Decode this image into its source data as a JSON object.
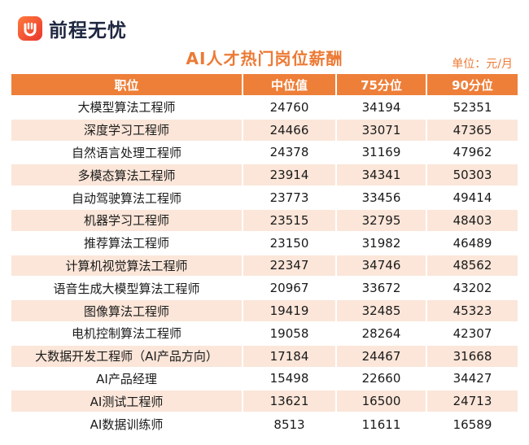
{
  "brand": {
    "name": "前程无忧",
    "logo_icon": "qcwy-logo-icon",
    "accent": "#ee7f39"
  },
  "title": "AI人才热门岗位薪酬",
  "unit": "单位：元/月",
  "chart_data": {
    "type": "table",
    "title": "AI人才热门岗位薪酬",
    "unit": "单位：元/月",
    "columns": [
      "职位",
      "中位值",
      "75分位",
      "90分位"
    ],
    "rows": [
      [
        "大模型算法工程师",
        "24760",
        "34194",
        "52351"
      ],
      [
        "深度学习工程师",
        "24466",
        "33071",
        "47365"
      ],
      [
        "自然语言处理工程师",
        "24378",
        "31169",
        "47962"
      ],
      [
        "多模态算法工程师",
        "23914",
        "34341",
        "50303"
      ],
      [
        "自动驾驶算法工程师",
        "23773",
        "33456",
        "49414"
      ],
      [
        "机器学习工程师",
        "23515",
        "32795",
        "48403"
      ],
      [
        "推荐算法工程师",
        "23150",
        "31982",
        "46489"
      ],
      [
        "计算机视觉算法工程师",
        "22347",
        "34746",
        "48562"
      ],
      [
        "语音生成大模型算法工程师",
        "20967",
        "33672",
        "43202"
      ],
      [
        "图像算法工程师",
        "19419",
        "32485",
        "45323"
      ],
      [
        "电机控制算法工程师",
        "19058",
        "28264",
        "42307"
      ],
      [
        "大数据开发工程师（AI产品方向）",
        "17184",
        "24467",
        "31668"
      ],
      [
        "AI产品经理",
        "15498",
        "22660",
        "34427"
      ],
      [
        "AI测试工程师",
        "13621",
        "16500",
        "24713"
      ],
      [
        "AI数据训练师",
        "8513",
        "11611",
        "16589"
      ]
    ]
  }
}
